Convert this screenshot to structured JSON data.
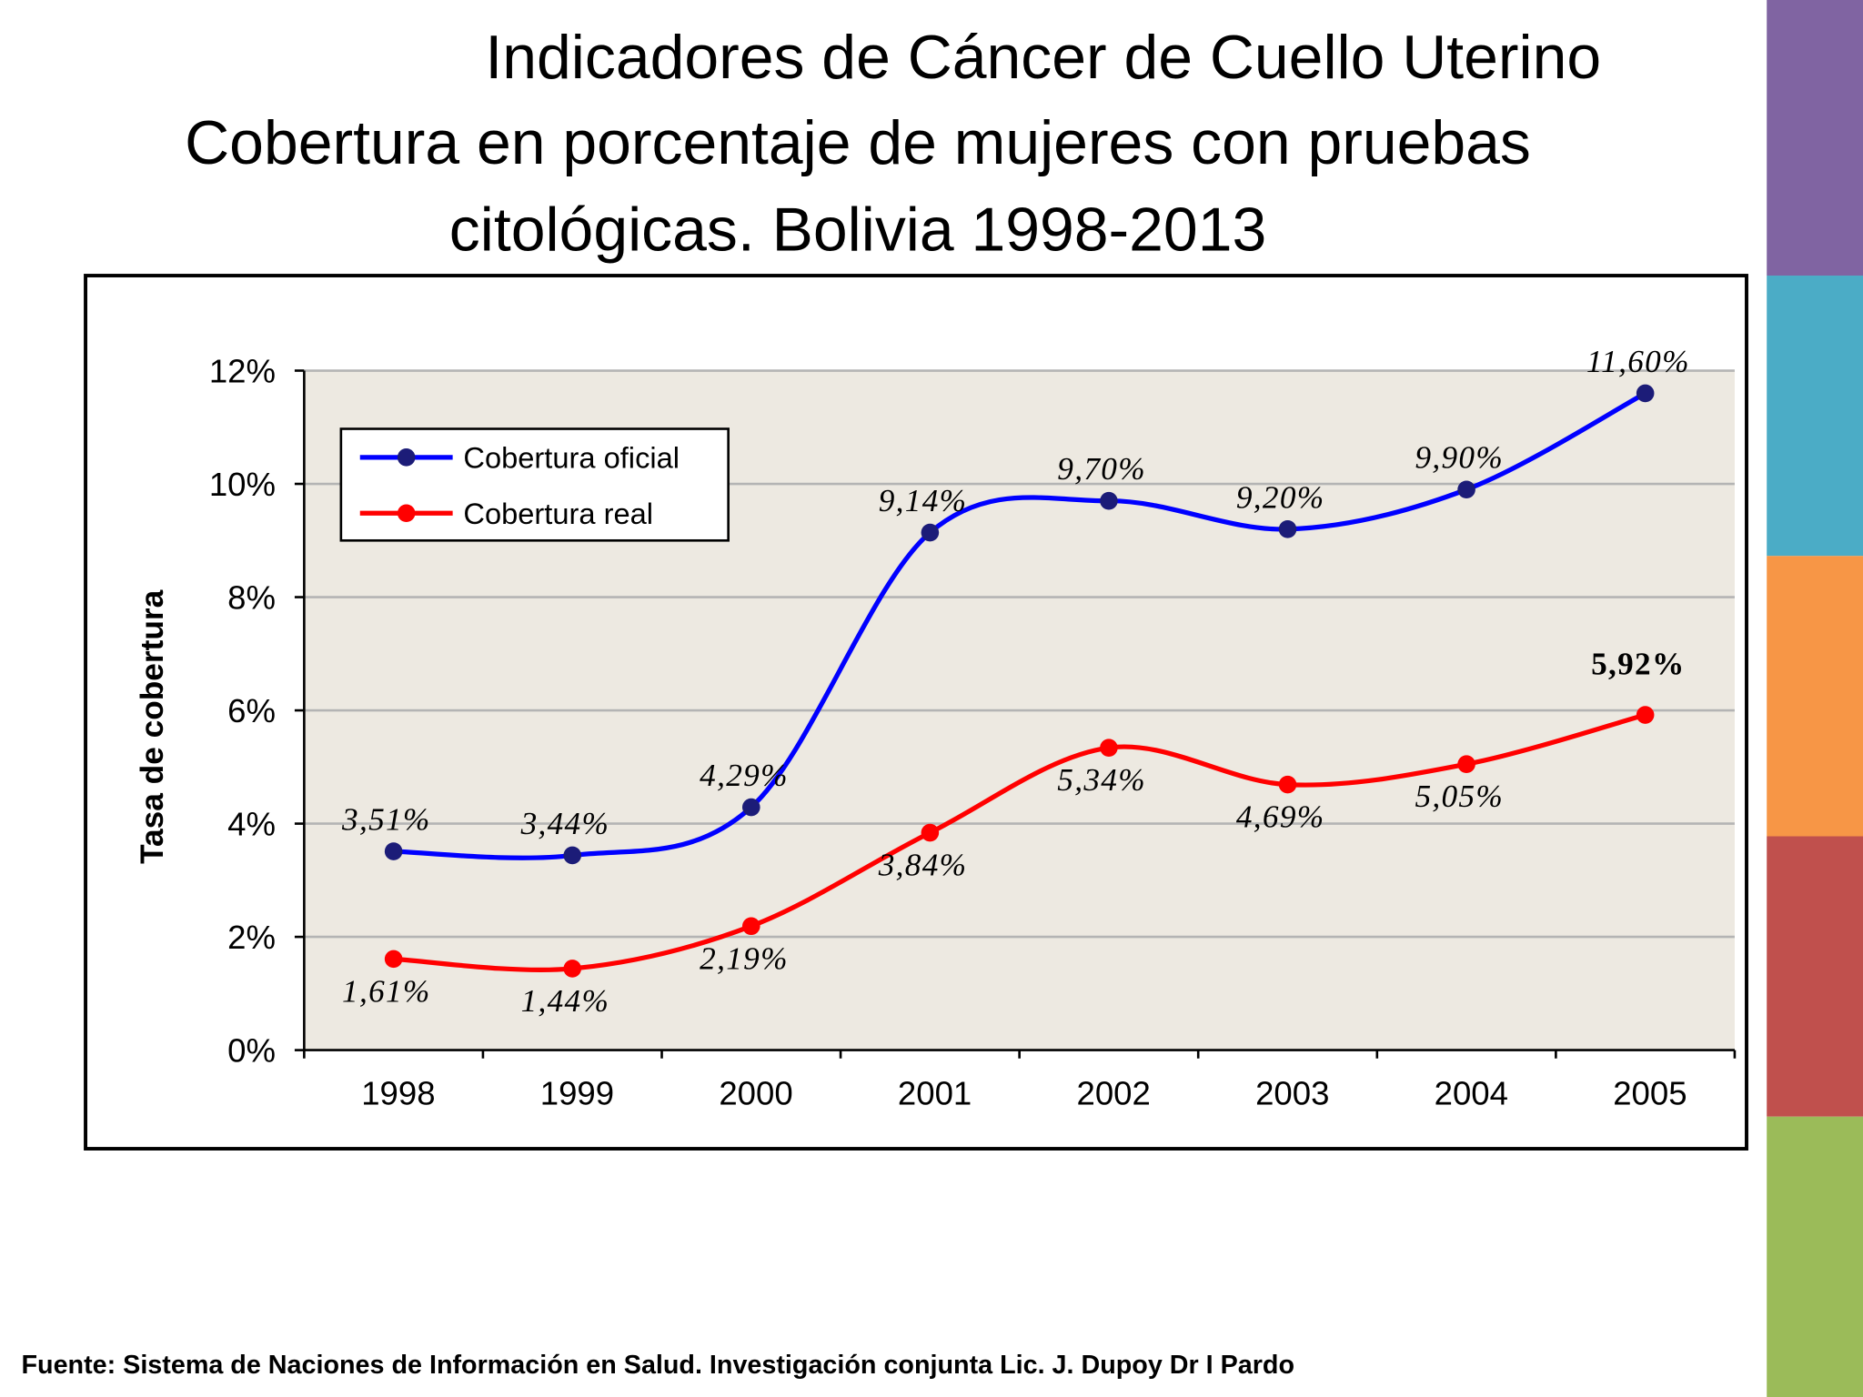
{
  "chart_data": {
    "type": "line",
    "title": "Indicadores de Cáncer de Cuello Uterino",
    "subtitle": [
      "Cobertura en porcentaje  de  mujeres con pruebas",
      "citológicas. Bolivia 1998-2013"
    ],
    "y_label": "Tasa de cobertura",
    "source": "Fuente: Sistema de Naciones de Información en Salud. Investigación conjunta Lic. J. Dupoy Dr I Pardo",
    "categories": [
      "1998",
      "1999",
      "2000",
      "2001",
      "2002",
      "2003",
      "2004",
      "2005"
    ],
    "series": [
      {
        "name": "Cobertura oficial",
        "color": "#0000ff",
        "marker_color": "#1c1c78",
        "values": [
          3.51,
          3.44,
          4.29,
          9.14,
          9.7,
          9.2,
          9.9,
          11.6
        ],
        "value_labels": [
          "3,51%",
          "3,44%",
          "4,29%",
          "9,14%",
          "9,70%",
          "9,20%",
          "9,90%",
          "11,60%"
        ]
      },
      {
        "name": "Cobertura real",
        "color": "#ff0000",
        "marker_color": "#ff0000",
        "values": [
          1.61,
          1.44,
          2.19,
          3.84,
          5.34,
          4.69,
          5.05,
          5.92
        ],
        "value_labels": [
          "1,61%",
          "1,44%",
          "2,19%",
          "3,84%",
          "5,34%",
          "4,69%",
          "5,05%",
          "5,92%"
        ]
      }
    ],
    "ylim": [
      0,
      12
    ],
    "yticks": [
      {
        "value": 0,
        "label": "0%"
      },
      {
        "value": 2,
        "label": "2%"
      },
      {
        "value": 4,
        "label": "4%"
      },
      {
        "value": 6,
        "label": "6%"
      },
      {
        "value": 8,
        "label": "8%"
      },
      {
        "value": 10,
        "label": "10%"
      },
      {
        "value": 12,
        "label": "12%"
      }
    ],
    "grid": true,
    "smooth": true,
    "legend": "upper left"
  }
}
